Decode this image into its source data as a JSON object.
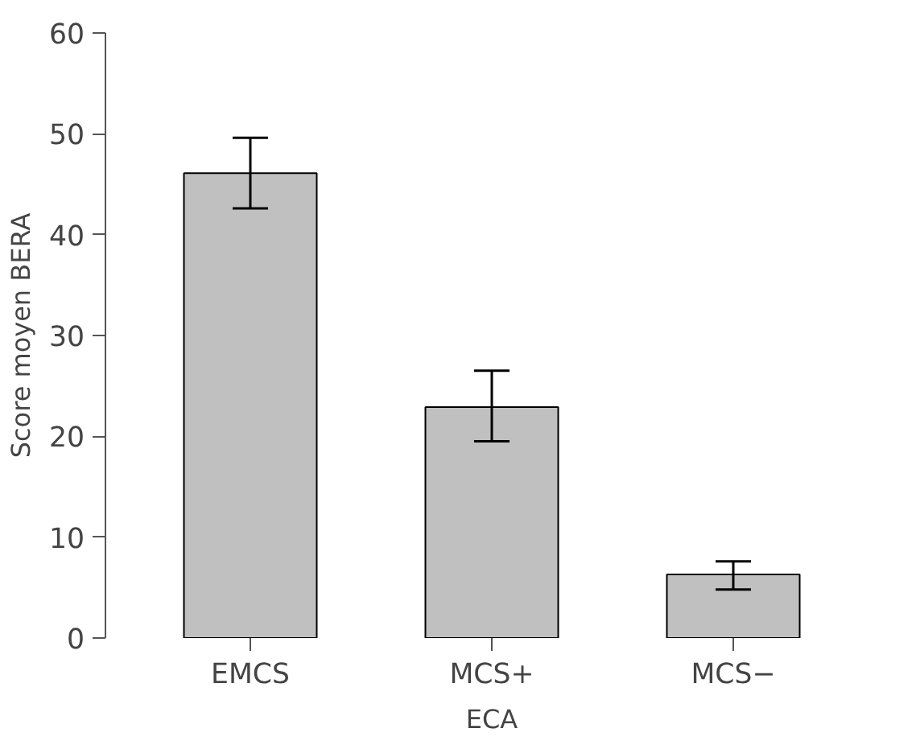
{
  "chart_data": {
    "type": "bar",
    "xlabel": "ECA",
    "ylabel": "Score moyen BERA",
    "categories": [
      "EMCS",
      "MCS+",
      "MCS−"
    ],
    "values": [
      46.1,
      22.9,
      6.3
    ],
    "errors": [
      [
        42.6,
        49.6
      ],
      [
        19.5,
        26.5
      ],
      [
        4.8,
        7.6
      ]
    ],
    "color": "#c0c0c0",
    "ylim": [
      0,
      60
    ],
    "yticks": [
      0,
      10,
      20,
      30,
      40,
      50,
      60
    ],
    "grid": false
  }
}
